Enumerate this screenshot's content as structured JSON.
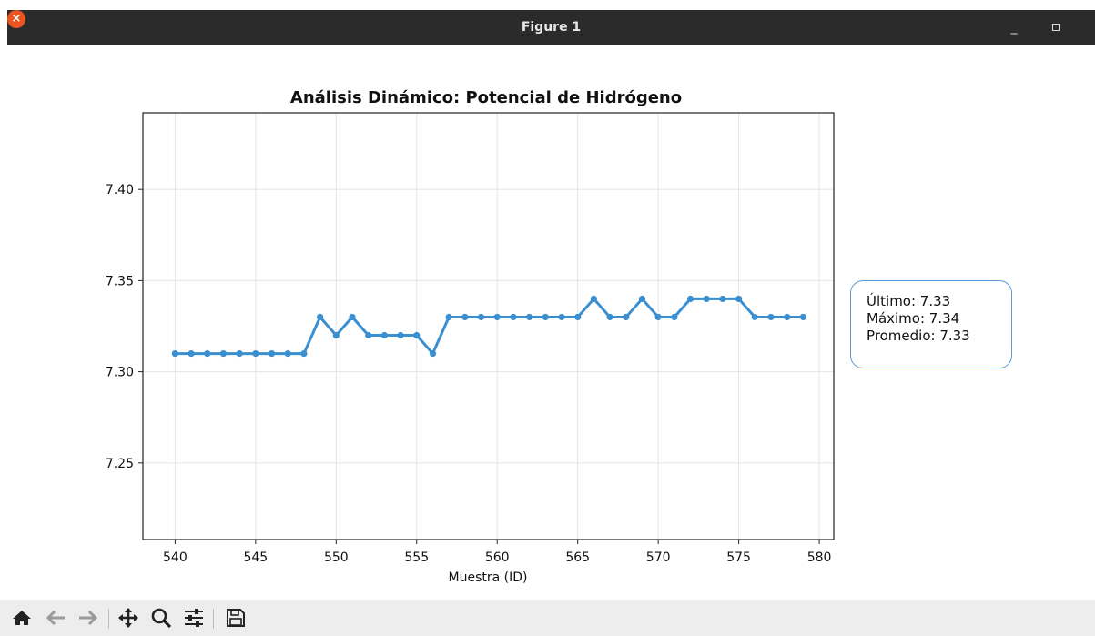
{
  "window": {
    "title": "Figure 1"
  },
  "chart_data": {
    "type": "line",
    "title": "Análisis Dinámico: Potencial de Hidrógeno",
    "xlabel": "Muestra (ID)",
    "ylabel": "",
    "x": [
      540,
      541,
      542,
      543,
      544,
      545,
      546,
      547,
      548,
      549,
      550,
      551,
      552,
      553,
      554,
      555,
      556,
      557,
      558,
      559,
      560,
      561,
      562,
      563,
      564,
      565,
      566,
      567,
      568,
      569,
      570,
      571,
      572,
      573,
      574,
      575,
      576,
      577,
      578,
      579
    ],
    "series": [
      {
        "values": [
          7.31,
          7.31,
          7.31,
          7.31,
          7.31,
          7.31,
          7.31,
          7.31,
          7.31,
          7.33,
          7.32,
          7.33,
          7.32,
          7.32,
          7.32,
          7.32,
          7.31,
          7.33,
          7.33,
          7.33,
          7.33,
          7.33,
          7.33,
          7.33,
          7.33,
          7.33,
          7.34,
          7.33,
          7.33,
          7.34,
          7.33,
          7.33,
          7.34,
          7.34,
          7.34,
          7.34,
          7.33,
          7.33,
          7.33,
          7.33
        ]
      }
    ],
    "xlim": [
      538,
      580.9
    ],
    "ylim": [
      7.208,
      7.442
    ],
    "xticks": [
      540,
      545,
      550,
      555,
      560,
      565,
      570,
      575,
      580
    ],
    "yticks": [
      7.25,
      7.3,
      7.35,
      7.4
    ],
    "ytick_labels": [
      "7.25",
      "7.30",
      "7.35",
      "7.40"
    ],
    "grid": true,
    "line_color": "#3a8fd0"
  },
  "stats": {
    "last": "Último: 7.33",
    "max": "Máximo: 7.34",
    "mean": "Promedio: 7.33"
  },
  "toolbar": {
    "icons": [
      "home-icon",
      "back-icon",
      "forward-icon",
      "pan-icon",
      "zoom-icon",
      "configure-subplots-icon",
      "save-icon"
    ]
  }
}
